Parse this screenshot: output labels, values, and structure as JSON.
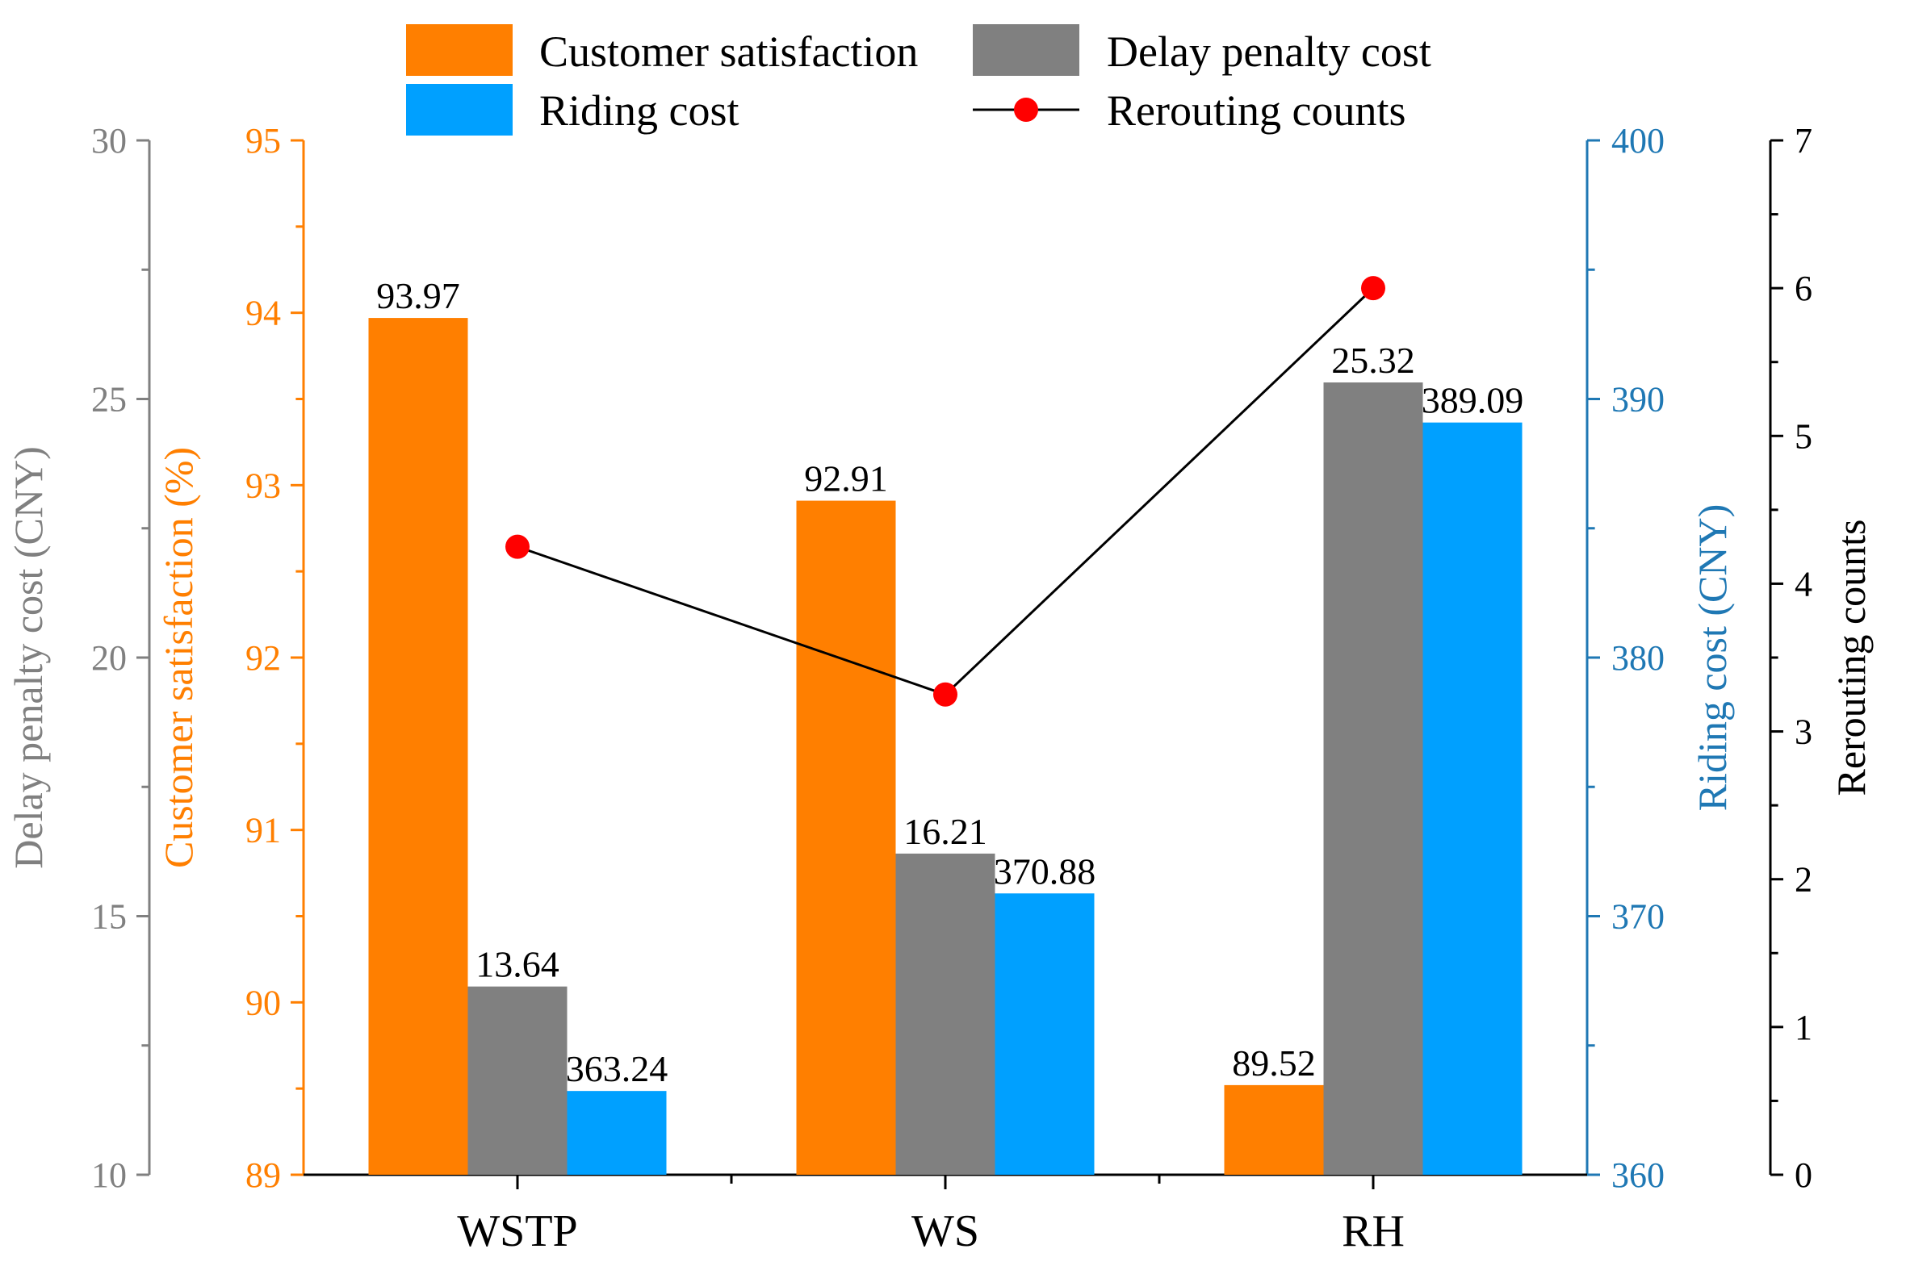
{
  "chart_data": {
    "type": "bar",
    "categories": [
      "WSTP",
      "WS",
      "RH"
    ],
    "series": [
      {
        "name": "Customer satisfaction",
        "axis": "customer_satisfaction",
        "color": "#ff7f00",
        "values": [
          93.97,
          92.91,
          89.52
        ],
        "labels": [
          "93.97",
          "92.91",
          "89.52"
        ]
      },
      {
        "name": "Delay penalty cost",
        "axis": "delay_penalty",
        "color": "#808080",
        "values": [
          13.64,
          16.21,
          25.32
        ],
        "labels": [
          "13.64",
          "16.21",
          "25.32"
        ]
      },
      {
        "name": "Riding cost",
        "axis": "riding_cost",
        "color": "#00a0ff",
        "values": [
          363.24,
          370.88,
          389.09
        ],
        "labels": [
          "363.24",
          "370.88",
          "389.09"
        ]
      }
    ],
    "line_series": {
      "name": "Rerouting counts",
      "axis": "rerouting",
      "line_color": "#000000",
      "marker_color": "#ff0000",
      "values": [
        4.25,
        3.25,
        6.0
      ]
    },
    "axes": {
      "delay_penalty": {
        "title": "Delay penalty cost (CNY)",
        "range": [
          10,
          30
        ],
        "ticks": [
          "10",
          "15",
          "20",
          "25",
          "30"
        ],
        "color": "#808080"
      },
      "customer_satisfaction": {
        "title": "Customer satisfaction (%)",
        "range": [
          89,
          95
        ],
        "ticks": [
          "89",
          "90",
          "91",
          "92",
          "93",
          "94",
          "95"
        ],
        "color": "#ff7f00"
      },
      "riding_cost": {
        "title": "Riding cost (CNY)",
        "range": [
          360,
          400
        ],
        "ticks": [
          "360",
          "370",
          "380",
          "390",
          "400"
        ],
        "color": "#1f78b4"
      },
      "rerouting": {
        "title": "Rerouting counts",
        "range": [
          0,
          7
        ],
        "ticks": [
          "0",
          "1",
          "2",
          "3",
          "4",
          "5",
          "6",
          "7"
        ],
        "color": "#000000"
      }
    },
    "legend": {
      "position": "top",
      "items": [
        {
          "label": "Customer satisfaction",
          "kind": "bar",
          "color": "#ff7f00"
        },
        {
          "label": "Delay penalty cost",
          "kind": "bar",
          "color": "#808080"
        },
        {
          "label": "Riding cost",
          "kind": "bar",
          "color": "#00a0ff"
        },
        {
          "label": "Rerouting counts",
          "kind": "line-marker",
          "color": "#ff0000"
        }
      ]
    }
  }
}
